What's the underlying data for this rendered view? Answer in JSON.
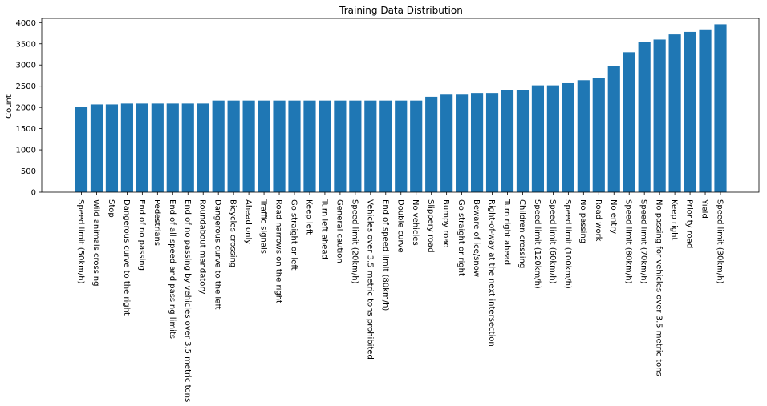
{
  "chart_data": {
    "type": "bar",
    "title": "Training Data Distribution",
    "xlabel": "",
    "ylabel": "Count",
    "ylim": [
      0,
      4100
    ],
    "yticks": [
      0,
      500,
      1000,
      1500,
      2000,
      2500,
      3000,
      3500,
      4000
    ],
    "grid": false,
    "bar_color": "#1f77b4",
    "categories": [
      "Speed limit (50km/h)",
      "Wild animals crossing",
      "Stop",
      "Dangerous curve to the right",
      "End of no passing",
      "Pedestrians",
      "End of all speed and passing limits",
      "End of no passing by vehicles over 3.5 metric tons",
      "Roundabout mandatory",
      "Dangerous curve to the left",
      "Bicycles crossing",
      "Ahead only",
      "Traffic signals",
      "Road narrows on the right",
      "Go straight or left",
      "Keep left",
      "Turn left ahead",
      "General caution",
      "Speed limit (20km/h)",
      "Vehicles over 3.5 metric tons prohibited",
      "End of speed limit (80km/h)",
      "Double curve",
      "No vehicles",
      "Slippery road",
      "Bumpy road",
      "Go straight or right",
      "Beware of ice/snow",
      "Right-of-way at the next intersection",
      "Turn right ahead",
      "Children crossing",
      "Speed limit (120km/h)",
      "Speed limit (60km/h)",
      "Speed limit (100km/h)",
      "No passing",
      "Road work",
      "No entry",
      "Speed limit (80km/h)",
      "Speed limit (70km/h)",
      "No passing for vehicles over 3.5 metric tons",
      "Keep right",
      "Priority road",
      "Yield",
      "Speed limit (30km/h)"
    ],
    "values": [
      2010,
      2070,
      2070,
      2090,
      2090,
      2090,
      2090,
      2090,
      2090,
      2160,
      2160,
      2160,
      2160,
      2160,
      2160,
      2160,
      2160,
      2160,
      2160,
      2160,
      2160,
      2160,
      2160,
      2250,
      2300,
      2300,
      2340,
      2340,
      2400,
      2400,
      2520,
      2520,
      2570,
      2640,
      2700,
      2970,
      3300,
      3540,
      3600,
      3720,
      3780,
      3840,
      3960
    ]
  }
}
